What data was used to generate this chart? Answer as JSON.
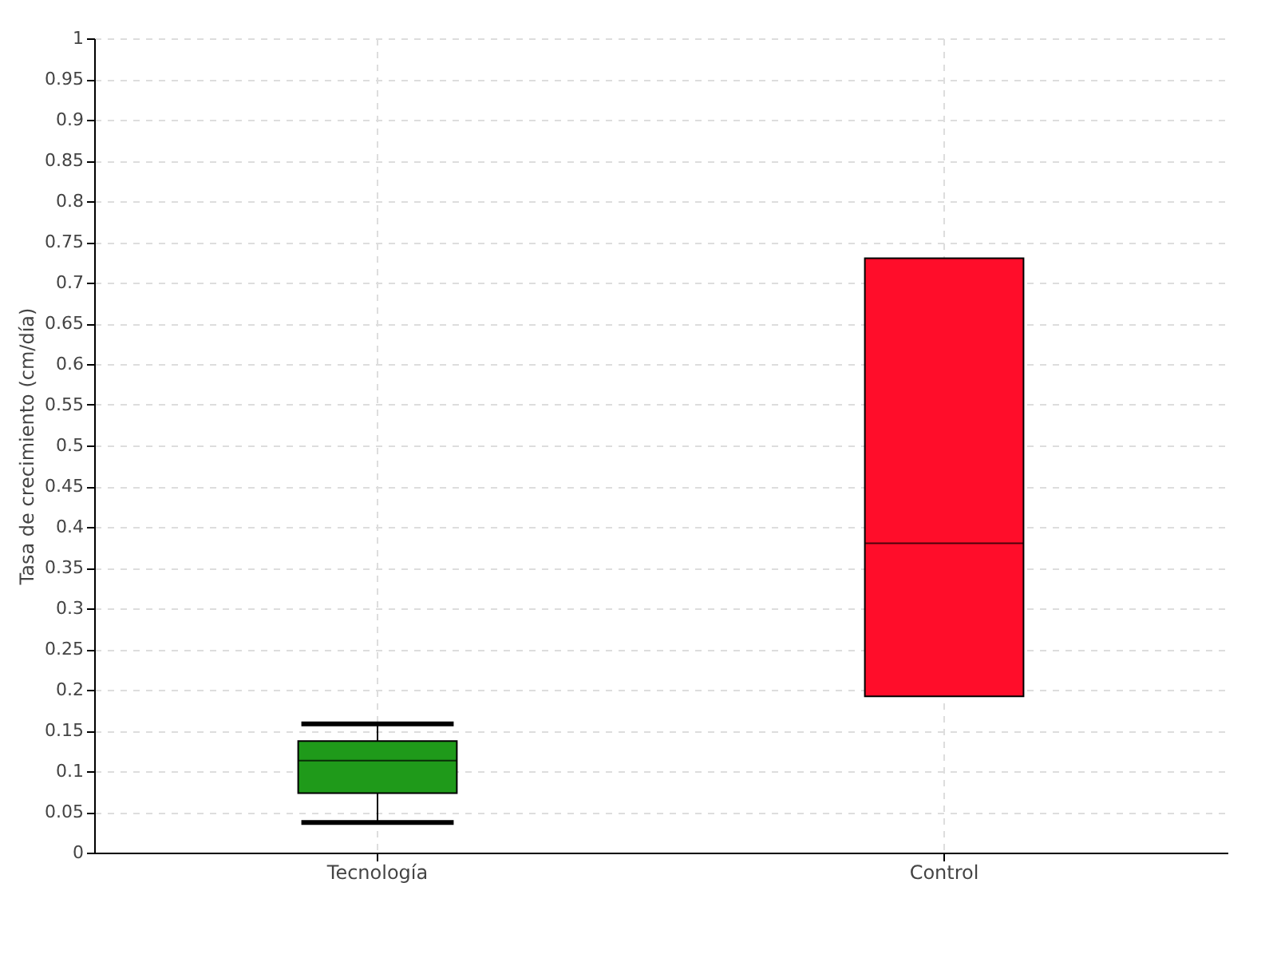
{
  "chart_data": {
    "type": "box",
    "ylabel": "Tasa de crecimiento (cm/día)",
    "categories": [
      "Tecnología",
      "Control"
    ],
    "colors": [
      "#1f9a1a",
      "#ff0d2a"
    ],
    "boxes": [
      {
        "low": 0.037,
        "q1": 0.073,
        "median": 0.113,
        "q3": 0.137,
        "high": 0.158
      },
      {
        "low": 0.192,
        "q1": 0.192,
        "median": 0.38,
        "q3": 0.73,
        "high": 0.73
      }
    ],
    "ylim": [
      0,
      1
    ],
    "yticks": [
      0,
      0.05,
      0.1,
      0.15,
      0.2,
      0.25,
      0.3,
      0.35,
      0.4,
      0.45,
      0.5,
      0.55,
      0.6,
      0.65,
      0.7,
      0.75,
      0.8,
      0.85,
      0.9,
      0.95,
      1
    ],
    "grid": true
  }
}
